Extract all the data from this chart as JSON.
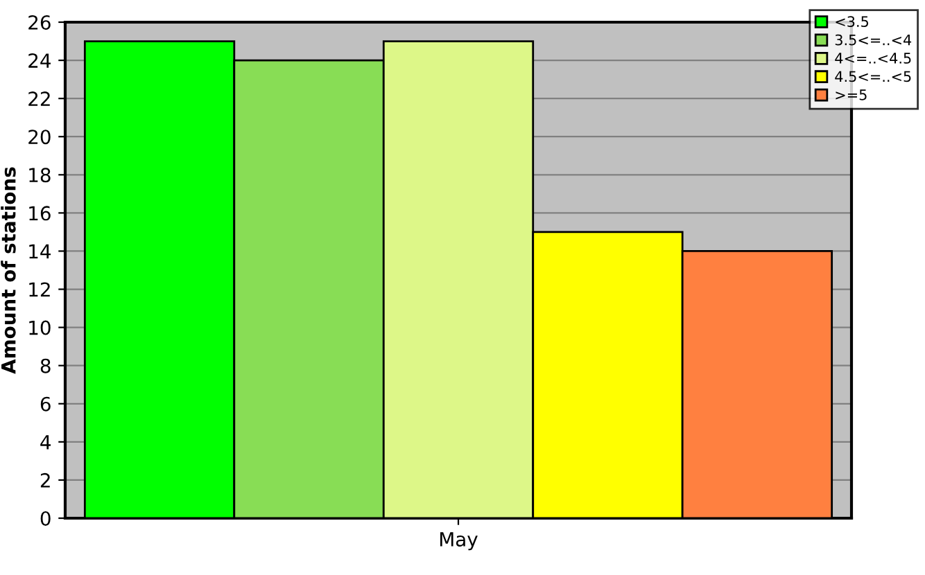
{
  "chart_data": {
    "type": "bar",
    "ylabel": "Amount of stations",
    "categories": [
      "May"
    ],
    "series": [
      {
        "name": "<3.5",
        "color": "#00ff00",
        "values": [
          25
        ]
      },
      {
        "name": "3.5<=..<4",
        "color": "#88dd55",
        "values": [
          24
        ]
      },
      {
        "name": "4<=..<4.5",
        "color": "#ddf788",
        "values": [
          25
        ]
      },
      {
        "name": "4.5<=..<5",
        "color": "#ffff00",
        "values": [
          15
        ]
      },
      {
        "name": ">=5",
        "color": "#ff8040",
        "values": [
          14
        ]
      }
    ],
    "ylim": [
      0,
      26
    ],
    "yticks": [
      0,
      2,
      4,
      6,
      8,
      10,
      12,
      14,
      16,
      18,
      20,
      22,
      24,
      26
    ],
    "grid": "y",
    "legend": "top right"
  }
}
